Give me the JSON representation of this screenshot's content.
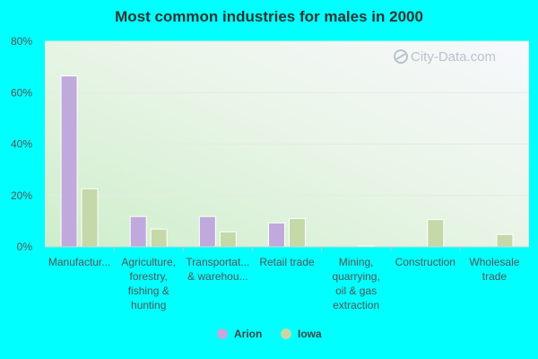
{
  "chart_data": {
    "type": "bar",
    "title": "Most common industries for males in 2000",
    "categories": [
      [
        "Manufactur..."
      ],
      [
        "Agriculture,",
        "forestry,",
        "fishing &",
        "hunting"
      ],
      [
        "Transportat...",
        "& warehou..."
      ],
      [
        "Retail trade"
      ],
      [
        "Mining,",
        "quarrying,",
        "oil & gas",
        "extraction"
      ],
      [
        "Construction"
      ],
      [
        "Wholesale",
        "trade"
      ]
    ],
    "series": [
      {
        "name": "Arion",
        "color": "#c0a9dc",
        "values": [
          66.5,
          11.8,
          11.8,
          9.3,
          0,
          0,
          0
        ]
      },
      {
        "name": "Iowa",
        "color": "#c5d8a7",
        "values": [
          22.6,
          6.9,
          5.8,
          11.0,
          0.3,
          10.6,
          4.8
        ]
      }
    ],
    "ylim": [
      0,
      80
    ],
    "yticks": [
      0,
      20,
      40,
      60,
      80
    ],
    "ytick_labels": [
      "0%",
      "20%",
      "40%",
      "60%",
      "80%"
    ],
    "grid": true,
    "legend_position": "bottom-center"
  },
  "watermark": "City-Data.com"
}
